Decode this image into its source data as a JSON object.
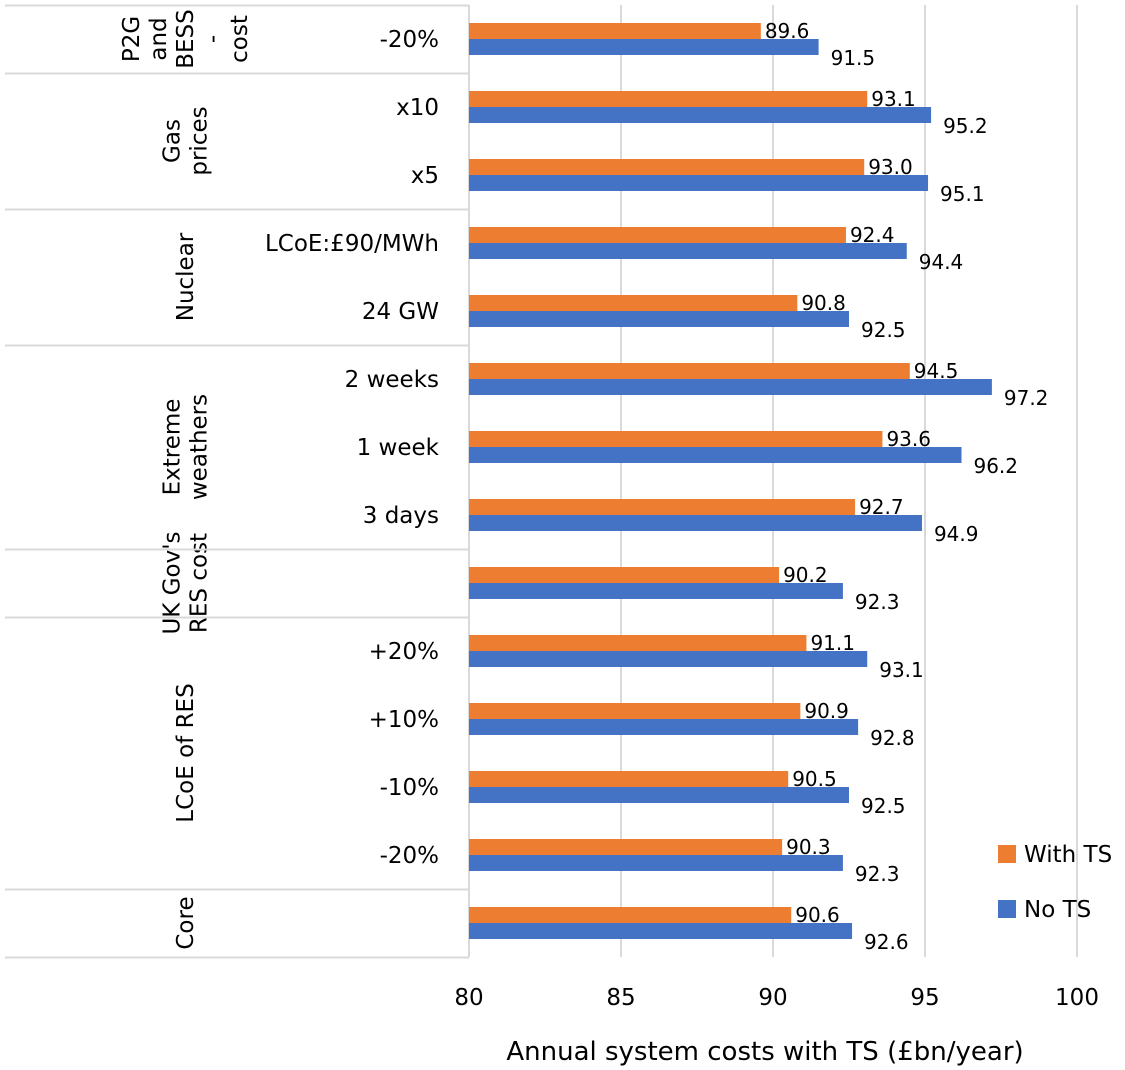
{
  "chart_data": {
    "type": "bar",
    "orientation": "horizontal",
    "xlabel": "Annual system costs with TS (£bn/year)",
    "ylabel": "",
    "xlim": [
      80,
      100
    ],
    "xticks": [
      80,
      85,
      90,
      95,
      100
    ],
    "grid": true,
    "legend_position": "bottom-right",
    "groups": [
      {
        "name": "P2G and BESS - cost",
        "lines": [
          "P2G",
          "and",
          "BESS",
          "-",
          "cost"
        ],
        "categories": [
          {
            "label": "-20%",
            "with_ts": 89.6,
            "no_ts": 91.5
          }
        ]
      },
      {
        "name": "Gas prices",
        "lines": [
          "Gas",
          "prices"
        ],
        "categories": [
          {
            "label": "x10",
            "with_ts": 93.1,
            "no_ts": 95.2
          },
          {
            "label": "x5",
            "with_ts": 93.0,
            "no_ts": 95.1
          }
        ]
      },
      {
        "name": "Nuclear",
        "lines": [
          "Nuclear"
        ],
        "categories": [
          {
            "label": "LCoE:£90/MWh",
            "with_ts": 92.4,
            "no_ts": 94.4
          },
          {
            "label": "24 GW",
            "with_ts": 90.8,
            "no_ts": 92.5
          }
        ]
      },
      {
        "name": "Extreme weathers",
        "lines": [
          "Extreme",
          "weathers"
        ],
        "categories": [
          {
            "label": "2 weeks",
            "with_ts": 94.5,
            "no_ts": 97.2
          },
          {
            "label": "1 week",
            "with_ts": 93.6,
            "no_ts": 96.2
          },
          {
            "label": "3 days",
            "with_ts": 92.7,
            "no_ts": 94.9
          }
        ]
      },
      {
        "name": "UK Gov's RES cost",
        "lines": [
          "UK Gov's",
          "RES cost"
        ],
        "categories": [
          {
            "label": "",
            "with_ts": 90.2,
            "no_ts": 92.3
          }
        ]
      },
      {
        "name": "LCoE of RES",
        "lines": [
          "LCoE of RES"
        ],
        "categories": [
          {
            "label": "+20%",
            "with_ts": 91.1,
            "no_ts": 93.1
          },
          {
            "label": "+10%",
            "with_ts": 90.9,
            "no_ts": 92.8
          },
          {
            "label": "-10%",
            "with_ts": 90.5,
            "no_ts": 92.5
          },
          {
            "label": "-20%",
            "with_ts": 90.3,
            "no_ts": 92.3
          }
        ]
      },
      {
        "name": "Core",
        "lines": [
          "Core"
        ],
        "categories": [
          {
            "label": "",
            "with_ts": 90.6,
            "no_ts": 92.6
          }
        ]
      }
    ],
    "series": [
      {
        "name": "With TS",
        "key": "with_ts",
        "color": "#ED7D31"
      },
      {
        "name": "No TS",
        "key": "no_ts",
        "color": "#4472C4"
      }
    ]
  }
}
